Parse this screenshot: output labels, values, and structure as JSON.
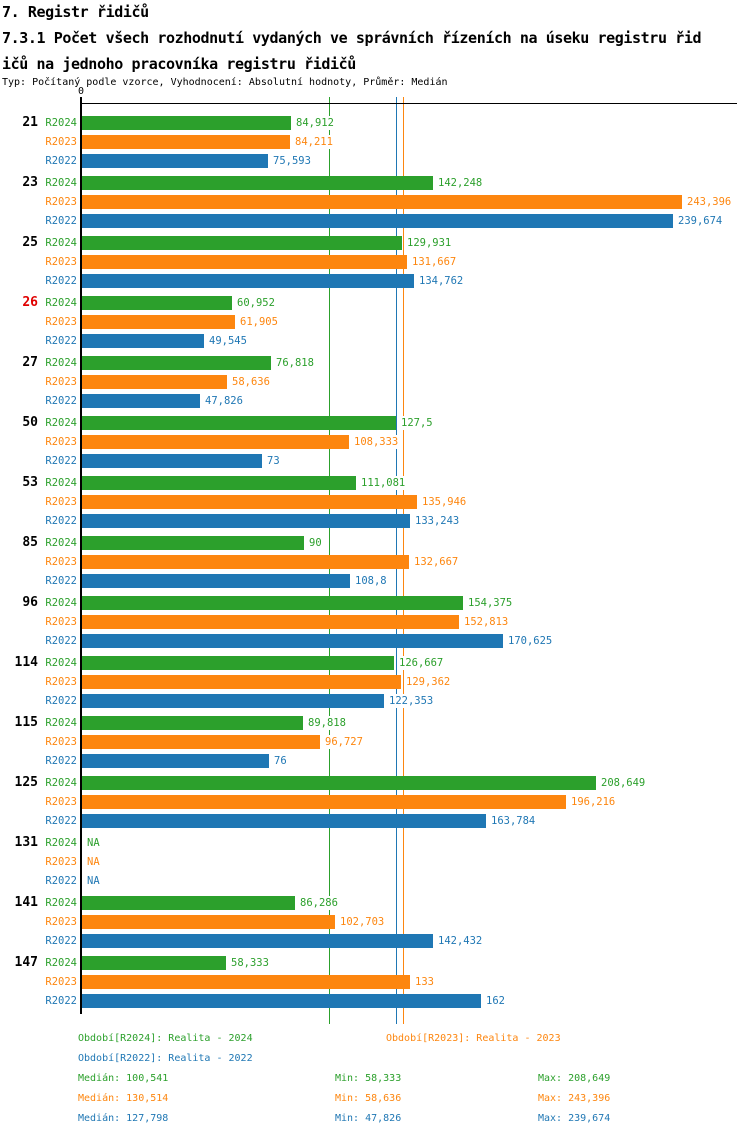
{
  "header": {
    "title1": "7. Registr řidičů",
    "title2": "7.3.1 Počet všech rozhodnutí vydaných ve správních řízeních na úseku registru řid",
    "title3": "ičů na jednoho pracovníka registru řidičů",
    "meta": "Typ: Počítaný podle vzorce, Vyhodnocení: Absolutní hodnoty, Průměr: Medián"
  },
  "chart_data": {
    "type": "bar",
    "orientation": "horizontal",
    "number_format": "czech-decimal-comma",
    "axis": {
      "origin_label": "0",
      "origin_value": 0,
      "xlim": [
        0,
        266
      ],
      "grid": "median-lines-vertical"
    },
    "series": [
      {
        "name": "R2024",
        "color": "#2ca02c",
        "legend": "Období[R2024]: Realita - 2024",
        "median": 100.541,
        "median_label": "Medián: 100,541",
        "min_label": "Min: 58,333",
        "max_label": "Max: 208,649"
      },
      {
        "name": "R2023",
        "color": "#fd860f",
        "legend": "Období[R2023]: Realita - 2023",
        "median": 130.514,
        "median_label": "Medián: 130,514",
        "min_label": "Min: 58,636",
        "max_label": "Max: 243,396"
      },
      {
        "name": "R2022",
        "color": "#1f77b4",
        "legend": "Období[R2022]: Realita - 2022",
        "median": 127.798,
        "median_label": "Medián: 127,798",
        "min_label": "Min: 47,826",
        "max_label": "Max: 239,674"
      }
    ],
    "highlight_color": "#e00000",
    "groups": [
      {
        "category": "21",
        "highlight": false,
        "values": [
          84.912,
          84.211,
          75.593
        ],
        "value_labels": [
          "84,912",
          "84,211",
          "75,593"
        ]
      },
      {
        "category": "23",
        "highlight": false,
        "values": [
          142.248,
          243.396,
          239.674
        ],
        "value_labels": [
          "142,248",
          "243,396",
          "239,674"
        ]
      },
      {
        "category": "25",
        "highlight": false,
        "values": [
          129.931,
          131.667,
          134.762
        ],
        "value_labels": [
          "129,931",
          "131,667",
          "134,762"
        ]
      },
      {
        "category": "26",
        "highlight": true,
        "values": [
          60.952,
          61.905,
          49.545
        ],
        "value_labels": [
          "60,952",
          "61,905",
          "49,545"
        ]
      },
      {
        "category": "27",
        "highlight": false,
        "values": [
          76.818,
          58.636,
          47.826
        ],
        "value_labels": [
          "76,818",
          "58,636",
          "47,826"
        ]
      },
      {
        "category": "50",
        "highlight": false,
        "values": [
          127.5,
          108.333,
          73
        ],
        "value_labels": [
          "127,5",
          "108,333",
          "73"
        ]
      },
      {
        "category": "53",
        "highlight": false,
        "values": [
          111.081,
          135.946,
          133.243
        ],
        "value_labels": [
          "111,081",
          "135,946",
          "133,243"
        ]
      },
      {
        "category": "85",
        "highlight": false,
        "values": [
          90,
          132.667,
          108.8
        ],
        "value_labels": [
          "90",
          "132,667",
          "108,8"
        ]
      },
      {
        "category": "96",
        "highlight": false,
        "values": [
          154.375,
          152.813,
          170.625
        ],
        "value_labels": [
          "154,375",
          "152,813",
          "170,625"
        ]
      },
      {
        "category": "114",
        "highlight": false,
        "values": [
          126.667,
          129.362,
          122.353
        ],
        "value_labels": [
          "126,667",
          "129,362",
          "122,353"
        ]
      },
      {
        "category": "115",
        "highlight": false,
        "values": [
          89.818,
          96.727,
          76
        ],
        "value_labels": [
          "89,818",
          "96,727",
          "76"
        ]
      },
      {
        "category": "125",
        "highlight": false,
        "values": [
          208.649,
          196.216,
          163.784
        ],
        "value_labels": [
          "208,649",
          "196,216",
          "163,784"
        ]
      },
      {
        "category": "131",
        "highlight": false,
        "values": [
          null,
          null,
          null
        ],
        "value_labels": [
          "NA",
          "NA",
          "NA"
        ]
      },
      {
        "category": "141",
        "highlight": false,
        "values": [
          86.286,
          102.703,
          142.432
        ],
        "value_labels": [
          "86,286",
          "102,703",
          "142,432"
        ]
      },
      {
        "category": "147",
        "highlight": false,
        "values": [
          58.333,
          133,
          162
        ],
        "value_labels": [
          "58,333",
          "133",
          "162"
        ]
      }
    ]
  }
}
